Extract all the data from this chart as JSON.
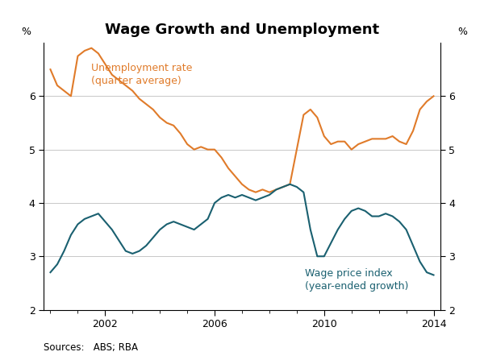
{
  "title": "Wage Growth and Unemployment",
  "ylabel_left": "%",
  "ylabel_right": "%",
  "source": "Sources:   ABS; RBA",
  "ylim": [
    2,
    7
  ],
  "yticks": [
    2,
    3,
    4,
    5,
    6
  ],
  "xlim_start": 1999.75,
  "xlim_end": 2014.25,
  "xtick_labels": [
    "2002",
    "2006",
    "2010",
    "2014"
  ],
  "xtick_positions": [
    2002,
    2006,
    2010,
    2014
  ],
  "unemployment_color": "#E07B2A",
  "wage_color": "#1A6070",
  "unemployment_label": "Unemployment rate\n(quarter average)",
  "wage_label": "Wage price index\n(year-ended growth)",
  "unemployment_x": [
    2000.0,
    2000.25,
    2000.5,
    2000.75,
    2001.0,
    2001.25,
    2001.5,
    2001.75,
    2002.0,
    2002.25,
    2002.5,
    2002.75,
    2003.0,
    2003.25,
    2003.5,
    2003.75,
    2004.0,
    2004.25,
    2004.5,
    2004.75,
    2005.0,
    2005.25,
    2005.5,
    2005.75,
    2006.0,
    2006.25,
    2006.5,
    2006.75,
    2007.0,
    2007.25,
    2007.5,
    2007.75,
    2008.0,
    2008.25,
    2008.5,
    2008.75,
    2009.0,
    2009.25,
    2009.5,
    2009.75,
    2010.0,
    2010.25,
    2010.5,
    2010.75,
    2011.0,
    2011.25,
    2011.5,
    2011.75,
    2012.0,
    2012.25,
    2012.5,
    2012.75,
    2013.0,
    2013.25,
    2013.5,
    2013.75,
    2014.0
  ],
  "unemployment_y": [
    6.5,
    6.2,
    6.1,
    6.0,
    6.75,
    6.85,
    6.9,
    6.8,
    6.6,
    6.4,
    6.3,
    6.2,
    6.1,
    5.95,
    5.85,
    5.75,
    5.6,
    5.5,
    5.45,
    5.3,
    5.1,
    5.0,
    5.05,
    5.0,
    5.0,
    4.85,
    4.65,
    4.5,
    4.35,
    4.25,
    4.2,
    4.25,
    4.2,
    4.25,
    4.3,
    4.35,
    5.0,
    5.65,
    5.75,
    5.6,
    5.25,
    5.1,
    5.15,
    5.15,
    5.0,
    5.1,
    5.15,
    5.2,
    5.2,
    5.2,
    5.25,
    5.15,
    5.1,
    5.35,
    5.75,
    5.9,
    6.0
  ],
  "wage_x": [
    2000.0,
    2000.25,
    2000.5,
    2000.75,
    2001.0,
    2001.25,
    2001.5,
    2001.75,
    2002.0,
    2002.25,
    2002.5,
    2002.75,
    2003.0,
    2003.25,
    2003.5,
    2003.75,
    2004.0,
    2004.25,
    2004.5,
    2004.75,
    2005.0,
    2005.25,
    2005.5,
    2005.75,
    2006.0,
    2006.25,
    2006.5,
    2006.75,
    2007.0,
    2007.25,
    2007.5,
    2007.75,
    2008.0,
    2008.25,
    2008.5,
    2008.75,
    2009.0,
    2009.25,
    2009.5,
    2009.75,
    2010.0,
    2010.25,
    2010.5,
    2010.75,
    2011.0,
    2011.25,
    2011.5,
    2011.75,
    2012.0,
    2012.25,
    2012.5,
    2012.75,
    2013.0,
    2013.25,
    2013.5,
    2013.75,
    2014.0
  ],
  "wage_y": [
    2.7,
    2.85,
    3.1,
    3.4,
    3.6,
    3.7,
    3.75,
    3.8,
    3.65,
    3.5,
    3.3,
    3.1,
    3.05,
    3.1,
    3.2,
    3.35,
    3.5,
    3.6,
    3.65,
    3.6,
    3.55,
    3.5,
    3.6,
    3.7,
    4.0,
    4.1,
    4.15,
    4.1,
    4.15,
    4.1,
    4.05,
    4.1,
    4.15,
    4.25,
    4.3,
    4.35,
    4.3,
    4.2,
    3.5,
    3.0,
    3.0,
    3.25,
    3.5,
    3.7,
    3.85,
    3.9,
    3.85,
    3.75,
    3.75,
    3.8,
    3.75,
    3.65,
    3.5,
    3.2,
    2.9,
    2.7,
    2.65
  ]
}
